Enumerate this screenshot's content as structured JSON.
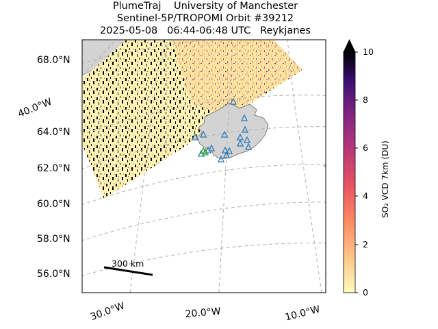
{
  "title": {
    "line1": "PlumeTraj    University of Manchester",
    "line2": "Sentinel-5P/TROPOMI Orbit #39212",
    "line3": "2025-05-08   06:44-06:48 UTC   Reykjanes"
  },
  "map": {
    "lat_labels": [
      "68.0°N",
      "64.0°N",
      "62.0°N",
      "60.0°N",
      "58.0°N",
      "56.0°N"
    ],
    "lon_labels": [
      "30.0°W",
      "20.0°W",
      "10.0°W"
    ],
    "side_lon_label": "40.0°W",
    "scale_bar_label": "300 km",
    "colors": {
      "land": "#d3d3d3",
      "coast": "#7f7f7f",
      "grid": "#b0b0b0",
      "swath_bg": "#fff3b5",
      "volcano_marker": "#2a7ab9",
      "active_volcano_marker": "#2ca02c"
    },
    "icons": [
      "volcano-triangle-icon",
      "active-volcano-triangle-icon"
    ]
  },
  "colorbar": {
    "title": "SO₂ VCD 7km (DU)",
    "ticks": [
      "10",
      "8",
      "6",
      "4",
      "2",
      "0"
    ],
    "range": [
      0,
      10
    ],
    "extend": "max",
    "colormap": "magma_r"
  }
}
